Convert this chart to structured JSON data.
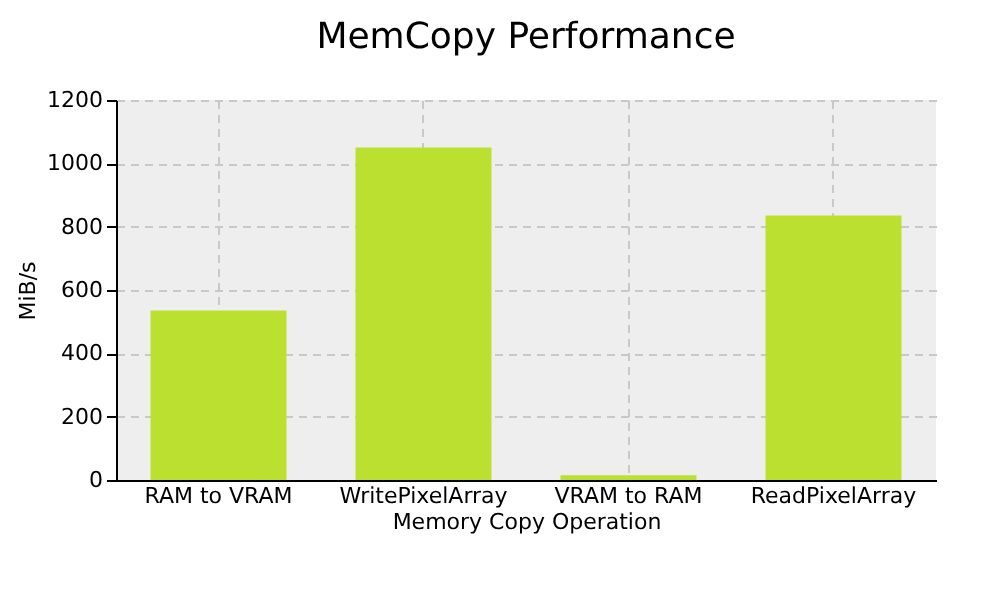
{
  "chart_data": {
    "type": "bar",
    "title": "MemCopy Performance",
    "xlabel": "Memory Copy Operation",
    "ylabel": "MiB/s",
    "categories": [
      "RAM to VRAM",
      "WritePixelArray",
      "VRAM to RAM",
      "ReadPixelArray"
    ],
    "values": [
      535,
      1050,
      15,
      835
    ],
    "color": "#bce030",
    "ylim": [
      0,
      1200
    ],
    "yticks": [
      0,
      200,
      400,
      600,
      800,
      1000,
      1200
    ],
    "grid": true
  }
}
